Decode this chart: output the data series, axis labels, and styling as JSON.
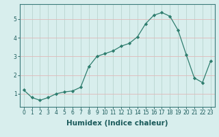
{
  "x": [
    0,
    1,
    2,
    3,
    4,
    5,
    6,
    7,
    8,
    9,
    10,
    11,
    12,
    13,
    14,
    15,
    16,
    17,
    18,
    19,
    20,
    21,
    22,
    23
  ],
  "y": [
    1.2,
    0.8,
    0.65,
    0.8,
    1.0,
    1.1,
    1.15,
    1.35,
    2.45,
    3.0,
    3.15,
    3.3,
    3.55,
    3.7,
    4.05,
    4.75,
    5.2,
    5.35,
    5.15,
    4.4,
    3.1,
    1.85,
    1.6,
    2.75
  ],
  "line_color": "#2e7d6e",
  "marker": "D",
  "marker_size": 2.2,
  "xlabel": "Humidex (Indice chaleur)",
  "ylim": [
    0.3,
    5.8
  ],
  "xlim": [
    -0.5,
    23.5
  ],
  "yticks": [
    1,
    2,
    3,
    4,
    5
  ],
  "xticks": [
    0,
    1,
    2,
    3,
    4,
    5,
    6,
    7,
    8,
    9,
    10,
    11,
    12,
    13,
    14,
    15,
    16,
    17,
    18,
    19,
    20,
    21,
    22,
    23
  ],
  "bg_color": "#d8eeed",
  "grid_color": "#b8d4d0",
  "grid_red_color": "#e0b8b8",
  "tick_fontsize": 5.5,
  "xlabel_fontsize": 7.5,
  "xlabel_color": "#1a5a5a",
  "tick_color": "#1a5a5a",
  "spine_color": "#3a7a7a"
}
